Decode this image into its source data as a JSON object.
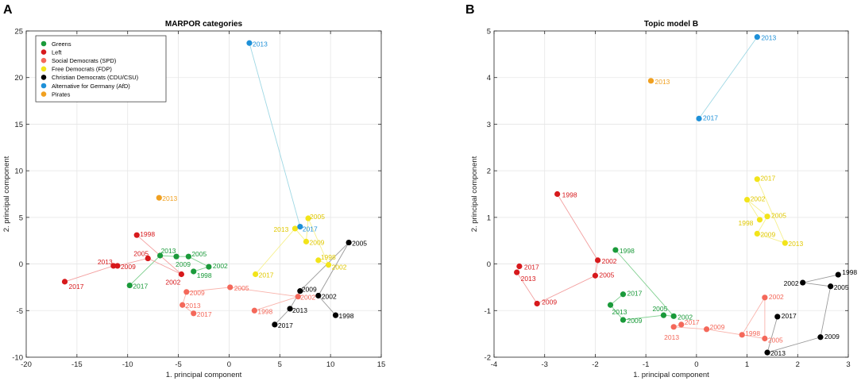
{
  "figure": {
    "panel_a_letter": "A",
    "panel_b_letter": "B"
  },
  "chart_data": [
    {
      "type": "scatter",
      "title": "MARPOR categories",
      "xlabel": "1. principal component",
      "ylabel": "2. principal component",
      "xlim": [
        -20,
        15
      ],
      "ylim": [
        -10,
        25
      ],
      "xticks": [
        -20,
        -15,
        -10,
        -5,
        0,
        5,
        10,
        15
      ],
      "yticks": [
        -10,
        -5,
        0,
        5,
        10,
        15,
        20,
        25
      ],
      "grid": true,
      "legend_position": "top-left",
      "series": [
        {
          "name": "Greens",
          "color": "#1a9a3a",
          "label_color": "#1a9a3a",
          "line_color": "#7fcf8f",
          "points": [
            {
              "label": "1998",
              "x": -3.5,
              "y": -0.8
            },
            {
              "label": "2002",
              "x": -2.0,
              "y": -0.3
            },
            {
              "label": "2005",
              "x": -4.0,
              "y": 0.8
            },
            {
              "label": "2009",
              "x": -5.2,
              "y": 0.8
            },
            {
              "label": "2013",
              "x": -6.8,
              "y": 0.9
            },
            {
              "label": "2017",
              "x": -9.8,
              "y": -2.3
            }
          ]
        },
        {
          "name": "Left",
          "color": "#d7191c",
          "label_color": "#d7191c",
          "line_color": "#f3a0a0",
          "points": [
            {
              "label": "1998",
              "x": -9.1,
              "y": 3.1
            },
            {
              "label": "2002",
              "x": -4.7,
              "y": -1.1
            },
            {
              "label": "2005",
              "x": -8.0,
              "y": 0.6
            },
            {
              "label": "2009",
              "x": -11.0,
              "y": -0.2
            },
            {
              "label": "2013",
              "x": -11.4,
              "y": -0.2
            },
            {
              "label": "2017",
              "x": -16.2,
              "y": -1.9
            }
          ]
        },
        {
          "name": "Social Democrats (SPD)",
          "color": "#f4685a",
          "label_color": "#f4685a",
          "line_color": "#f9b3ab",
          "points": [
            {
              "label": "1998",
              "x": 2.5,
              "y": -5.0
            },
            {
              "label": "2002",
              "x": 6.8,
              "y": -3.5
            },
            {
              "label": "2005",
              "x": 0.1,
              "y": -2.5
            },
            {
              "label": "2009",
              "x": -4.2,
              "y": -3.0
            },
            {
              "label": "2013",
              "x": -4.6,
              "y": -4.4
            },
            {
              "label": "2017",
              "x": -3.5,
              "y": -5.3
            }
          ]
        },
        {
          "name": "Free Democrats (FDP)",
          "color": "#f2e41a",
          "label_color": "#e0c800",
          "line_color": "#f6f08c",
          "points": [
            {
              "label": "1998",
              "x": 8.8,
              "y": 0.4
            },
            {
              "label": "2002",
              "x": 9.8,
              "y": -0.1
            },
            {
              "label": "2005",
              "x": 7.8,
              "y": 4.9
            },
            {
              "label": "2009",
              "x": 7.6,
              "y": 2.4
            },
            {
              "label": "2013",
              "x": 6.5,
              "y": 3.8
            },
            {
              "label": "2017",
              "x": 2.6,
              "y": -1.1
            }
          ]
        },
        {
          "name": "Christian Democrats (CDU/CSU)",
          "color": "#000000",
          "label_color": "#000000",
          "line_color": "#9a9a9a",
          "points": [
            {
              "label": "1998",
              "x": 10.5,
              "y": -5.5
            },
            {
              "label": "2002",
              "x": 8.8,
              "y": -3.4
            },
            {
              "label": "2005",
              "x": 11.8,
              "y": 2.3
            },
            {
              "label": "2009",
              "x": 7.0,
              "y": -2.9
            },
            {
              "label": "2013",
              "x": 6.0,
              "y": -4.8
            },
            {
              "label": "2017",
              "x": 4.5,
              "y": -6.5
            }
          ]
        },
        {
          "name": "Alternative for Germany (AfD)",
          "color": "#1e90d8",
          "label_color": "#1e90d8",
          "line_color": "#9fd8e4",
          "points": [
            {
              "label": "2013",
              "x": 2.0,
              "y": 23.7
            },
            {
              "label": "2017",
              "x": 7.0,
              "y": 4.0
            }
          ]
        },
        {
          "name": "Pirates",
          "color": "#f0a020",
          "label_color": "#f0a020",
          "line_color": "#f5c880",
          "points": [
            {
              "label": "2013",
              "x": -6.9,
              "y": 7.1
            }
          ]
        }
      ]
    },
    {
      "type": "scatter",
      "title": "Topic model B",
      "xlabel": "1. principal component",
      "ylabel": "2. principal component",
      "xlim": [
        -4,
        3
      ],
      "ylim": [
        -2,
        5
      ],
      "xticks": [
        -4,
        -3,
        -2,
        -1,
        0,
        1,
        2,
        3
      ],
      "yticks": [
        -2,
        -1,
        0,
        1,
        2,
        3,
        4,
        5
      ],
      "grid": true,
      "series": [
        {
          "name": "Greens",
          "color": "#1a9a3a",
          "label_color": "#1a9a3a",
          "line_color": "#7fcf8f",
          "points": [
            {
              "label": "1998",
              "x": -1.6,
              "y": 0.3
            },
            {
              "label": "2002",
              "x": -0.45,
              "y": -1.12
            },
            {
              "label": "2005",
              "x": -0.65,
              "y": -1.1
            },
            {
              "label": "2009",
              "x": -1.45,
              "y": -1.2
            },
            {
              "label": "2013",
              "x": -1.7,
              "y": -0.88
            },
            {
              "label": "2017",
              "x": -1.45,
              "y": -0.65
            }
          ]
        },
        {
          "name": "Left",
          "color": "#d7191c",
          "label_color": "#d7191c",
          "line_color": "#f3a0a0",
          "points": [
            {
              "label": "1998",
              "x": -2.75,
              "y": 1.5
            },
            {
              "label": "2002",
              "x": -1.95,
              "y": 0.08
            },
            {
              "label": "2005",
              "x": -2.0,
              "y": -0.25
            },
            {
              "label": "2009",
              "x": -3.15,
              "y": -0.85
            },
            {
              "label": "2013",
              "x": -3.55,
              "y": -0.18
            },
            {
              "label": "2017",
              "x": -3.5,
              "y": -0.05
            }
          ]
        },
        {
          "name": "Social Democrats (SPD)",
          "color": "#f4685a",
          "label_color": "#f4685a",
          "line_color": "#f9b3ab",
          "points": [
            {
              "label": "1998",
              "x": 0.9,
              "y": -1.52
            },
            {
              "label": "2002",
              "x": 1.35,
              "y": -0.72
            },
            {
              "label": "2005",
              "x": 1.35,
              "y": -1.6
            },
            {
              "label": "2009",
              "x": 0.2,
              "y": -1.4
            },
            {
              "label": "2013",
              "x": -0.45,
              "y": -1.35
            },
            {
              "label": "2017",
              "x": -0.3,
              "y": -1.3
            }
          ]
        },
        {
          "name": "Free Democrats (FDP)",
          "color": "#f2e41a",
          "label_color": "#e0c800",
          "line_color": "#f6f08c",
          "points": [
            {
              "label": "1998",
              "x": 1.25,
              "y": 0.95
            },
            {
              "label": "2002",
              "x": 1.0,
              "y": 1.38
            },
            {
              "label": "2005",
              "x": 1.4,
              "y": 1.02
            },
            {
              "label": "2009",
              "x": 1.2,
              "y": 0.65
            },
            {
              "label": "2013",
              "x": 1.75,
              "y": 0.45
            },
            {
              "label": "2017",
              "x": 1.2,
              "y": 1.82
            }
          ]
        },
        {
          "name": "Christian Democrats (CDU/CSU)",
          "color": "#000000",
          "label_color": "#000000",
          "line_color": "#9a9a9a",
          "points": [
            {
              "label": "1998",
              "x": 2.8,
              "y": -0.23
            },
            {
              "label": "2002",
              "x": 2.1,
              "y": -0.4
            },
            {
              "label": "2005",
              "x": 2.65,
              "y": -0.48
            },
            {
              "label": "2009",
              "x": 2.45,
              "y": -1.57
            },
            {
              "label": "2013",
              "x": 1.4,
              "y": -1.9
            },
            {
              "label": "2017",
              "x": 1.6,
              "y": -1.13
            }
          ]
        },
        {
          "name": "Alternative for Germany (AfD)",
          "color": "#1e90d8",
          "label_color": "#1e90d8",
          "line_color": "#9fd8e4",
          "points": [
            {
              "label": "2013",
              "x": 1.2,
              "y": 4.87
            },
            {
              "label": "2017",
              "x": 0.05,
              "y": 3.12
            }
          ]
        },
        {
          "name": "Pirates",
          "color": "#f0a020",
          "label_color": "#f0a020",
          "line_color": "#f5c880",
          "points": [
            {
              "label": "2013",
              "x": -0.9,
              "y": 3.93
            }
          ]
        }
      ]
    }
  ]
}
